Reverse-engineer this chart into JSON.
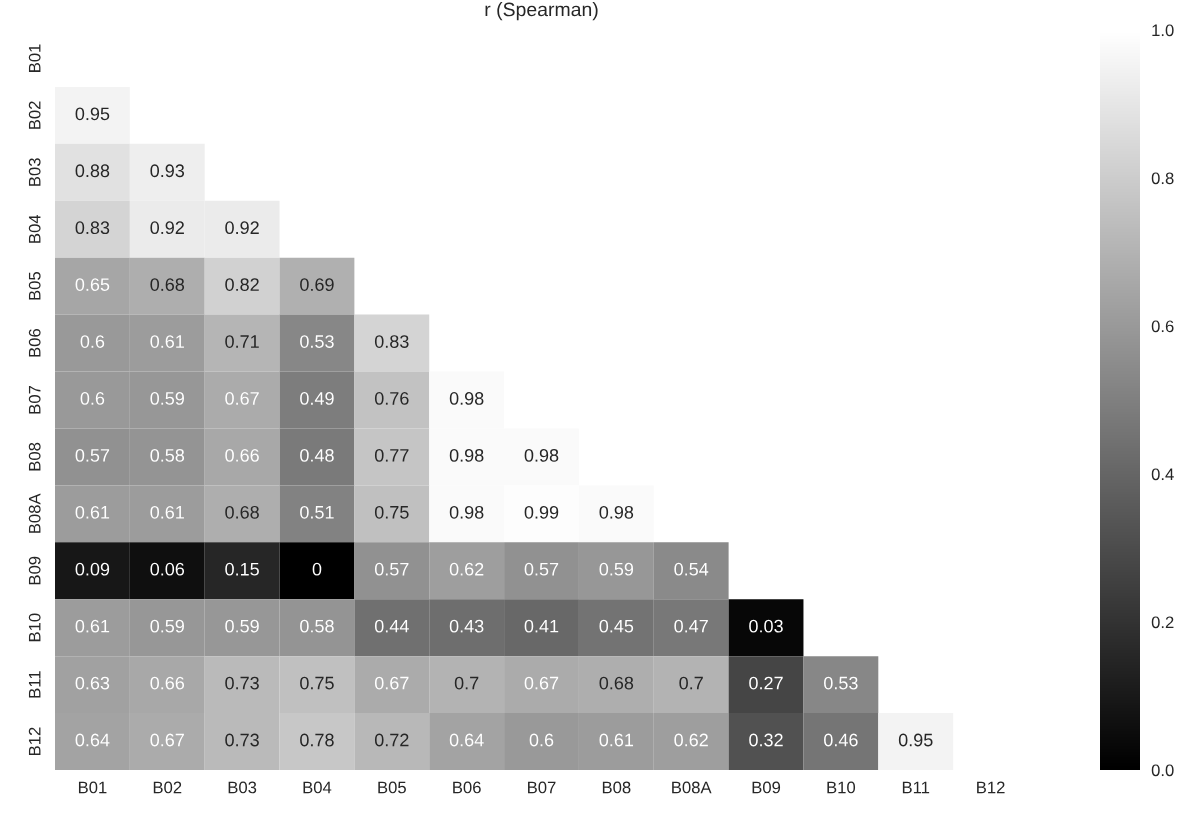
{
  "chart_data": {
    "type": "heatmap",
    "title": "r (Spearman)",
    "categories": [
      "B01",
      "B02",
      "B03",
      "B04",
      "B05",
      "B06",
      "B07",
      "B08",
      "B08A",
      "B09",
      "B10",
      "B11",
      "B12"
    ],
    "y_categories": [
      "B01",
      "B02",
      "B03",
      "B04",
      "B05",
      "B06",
      "B07",
      "B08",
      "B08A",
      "B09",
      "B10",
      "B11",
      "B12"
    ],
    "cells": [
      [
        null,
        null,
        null,
        null,
        null,
        null,
        null,
        null,
        null,
        null,
        null,
        null,
        null
      ],
      [
        0.95,
        null,
        null,
        null,
        null,
        null,
        null,
        null,
        null,
        null,
        null,
        null,
        null
      ],
      [
        0.88,
        0.93,
        null,
        null,
        null,
        null,
        null,
        null,
        null,
        null,
        null,
        null,
        null
      ],
      [
        0.83,
        0.92,
        0.92,
        null,
        null,
        null,
        null,
        null,
        null,
        null,
        null,
        null,
        null
      ],
      [
        0.65,
        0.68,
        0.82,
        0.69,
        null,
        null,
        null,
        null,
        null,
        null,
        null,
        null,
        null
      ],
      [
        0.6,
        0.61,
        0.71,
        0.53,
        0.83,
        null,
        null,
        null,
        null,
        null,
        null,
        null,
        null
      ],
      [
        0.6,
        0.59,
        0.67,
        0.49,
        0.76,
        0.98,
        null,
        null,
        null,
        null,
        null,
        null,
        null
      ],
      [
        0.57,
        0.58,
        0.66,
        0.48,
        0.77,
        0.98,
        0.98,
        null,
        null,
        null,
        null,
        null,
        null
      ],
      [
        0.61,
        0.61,
        0.68,
        0.51,
        0.75,
        0.98,
        0.99,
        0.98,
        null,
        null,
        null,
        null,
        null
      ],
      [
        0.09,
        0.06,
        0.15,
        0,
        0.57,
        0.62,
        0.57,
        0.59,
        0.54,
        null,
        null,
        null,
        null
      ],
      [
        0.61,
        0.59,
        0.59,
        0.58,
        0.44,
        0.43,
        0.41,
        0.45,
        0.47,
        0.03,
        null,
        null,
        null
      ],
      [
        0.63,
        0.66,
        0.73,
        0.75,
        0.67,
        0.7,
        0.67,
        0.68,
        0.7,
        0.27,
        0.53,
        null,
        null
      ],
      [
        0.64,
        0.67,
        0.73,
        0.78,
        0.72,
        0.64,
        0.6,
        0.61,
        0.62,
        0.32,
        0.46,
        0.95,
        null
      ]
    ],
    "clim": [
      0,
      1
    ],
    "cticks": [
      {
        "value": 0,
        "label": "0.0"
      },
      {
        "value": 0.2,
        "label": "0.2"
      },
      {
        "value": 0.4,
        "label": "0.4"
      },
      {
        "value": 0.6,
        "label": "0.6"
      },
      {
        "value": 0.8,
        "label": "0.8"
      },
      {
        "value": 1,
        "label": "1.0"
      }
    ],
    "data_labels": true
  }
}
